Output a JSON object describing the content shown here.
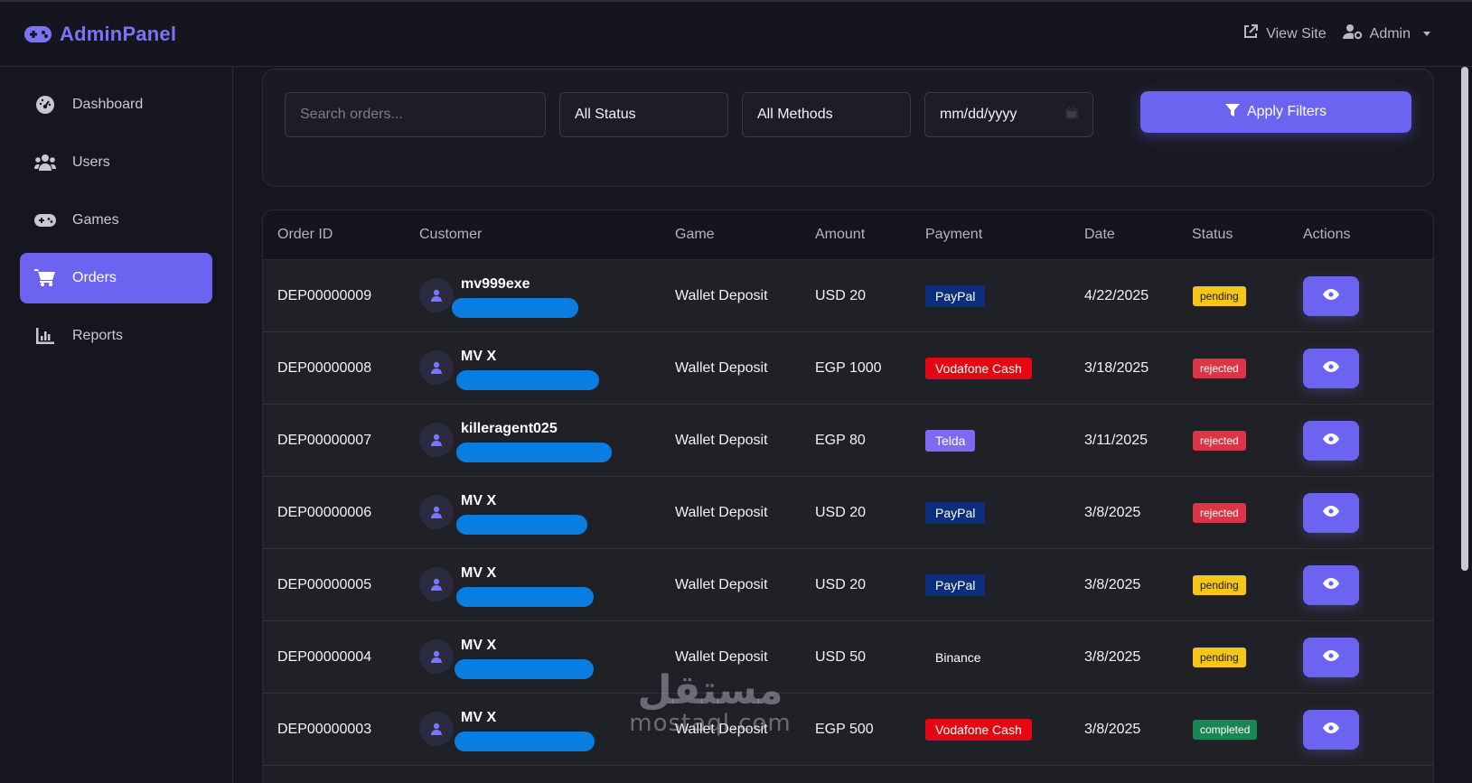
{
  "brand": {
    "name": "AdminPanel",
    "icon": "gamepad-icon",
    "color": "#7b73f5"
  },
  "topbar": {
    "view_site": "View Site",
    "user": "Admin"
  },
  "sidebar": {
    "items": [
      {
        "label": "Dashboard",
        "icon": "dashboard-icon",
        "active": false
      },
      {
        "label": "Users",
        "icon": "users-icon",
        "active": false
      },
      {
        "label": "Games",
        "icon": "gamepad-icon",
        "active": false
      },
      {
        "label": "Orders",
        "icon": "cart-icon",
        "active": true
      },
      {
        "label": "Reports",
        "icon": "chart-icon",
        "active": false
      }
    ]
  },
  "filters": {
    "search_placeholder": "Search orders...",
    "status": "All Status",
    "method": "All Methods",
    "date_placeholder": "mm/dd/yyyy",
    "apply_label": "Apply Filters"
  },
  "table": {
    "headers": [
      "Order ID",
      "Customer",
      "Game",
      "Amount",
      "Payment",
      "Date",
      "Status",
      "Actions"
    ],
    "rows": [
      {
        "id": "DEP00000009",
        "customer": "mv999exe",
        "game": "Wallet Deposit",
        "amount": "USD 20",
        "payment": "PayPal",
        "date": "4/22/2025",
        "status": "pending"
      },
      {
        "id": "DEP00000008",
        "customer": "MV X",
        "game": "Wallet Deposit",
        "amount": "EGP 1000",
        "payment": "Vodafone Cash",
        "date": "3/18/2025",
        "status": "rejected"
      },
      {
        "id": "DEP00000007",
        "customer": "killeragent025",
        "game": "Wallet Deposit",
        "amount": "EGP 80",
        "payment": "Telda",
        "date": "3/11/2025",
        "status": "rejected"
      },
      {
        "id": "DEP00000006",
        "customer": "MV X",
        "game": "Wallet Deposit",
        "amount": "USD 20",
        "payment": "PayPal",
        "date": "3/8/2025",
        "status": "rejected"
      },
      {
        "id": "DEP00000005",
        "customer": "MV X",
        "game": "Wallet Deposit",
        "amount": "USD 20",
        "payment": "PayPal",
        "date": "3/8/2025",
        "status": "pending"
      },
      {
        "id": "DEP00000004",
        "customer": "MV X",
        "game": "Wallet Deposit",
        "amount": "USD 50",
        "payment": "Binance",
        "date": "3/8/2025",
        "status": "pending"
      },
      {
        "id": "DEP00000003",
        "customer": "MV X",
        "game": "Wallet Deposit",
        "amount": "EGP 500",
        "payment": "Vodafone Cash",
        "date": "3/8/2025",
        "status": "completed"
      }
    ]
  },
  "colors": {
    "accent": "#6c63f0",
    "paypal": "#0b2d7a",
    "vodafone": "#e30613",
    "telda": "#7c6af2",
    "pending": "#f5c518",
    "rejected": "#dc3545",
    "completed": "#198754"
  },
  "watermark": {
    "arabic": "مستقل",
    "latin": "mostaql.com"
  }
}
